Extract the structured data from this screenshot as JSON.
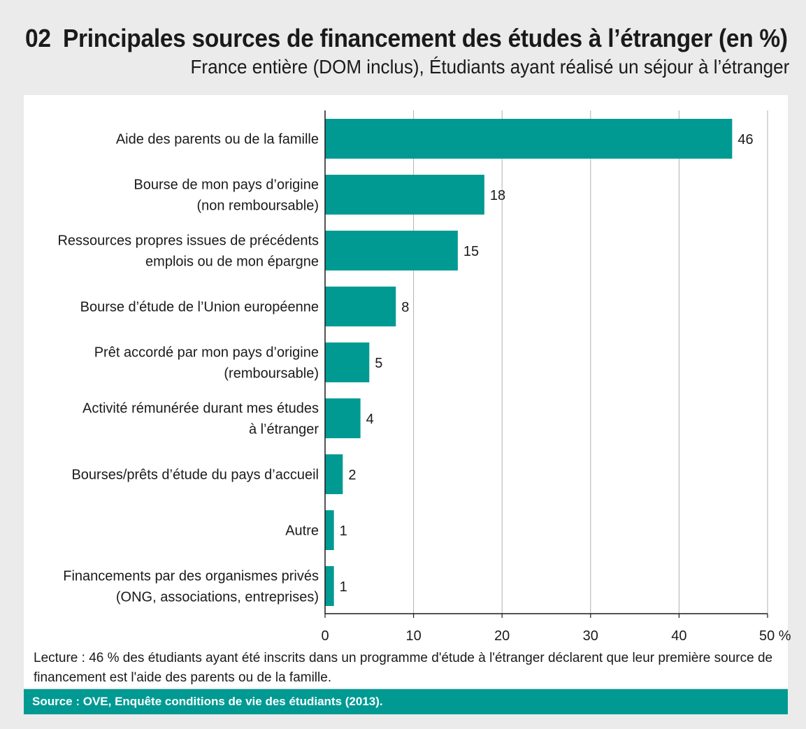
{
  "header": {
    "number": "02",
    "title": "Principales sources de financement des études à l’étranger (en %)",
    "subtitle": "France entière (DOM inclus), Étudiants ayant réalisé un séjour à l’étranger"
  },
  "chart_data": {
    "type": "bar",
    "orientation": "horizontal",
    "categories": [
      [
        "Aide des parents ou de la famille"
      ],
      [
        "Bourse de mon pays d’origine",
        "(non remboursable)"
      ],
      [
        "Ressources propres issues de précédents",
        "emplois ou de mon épargne"
      ],
      [
        "Bourse d’étude de l’Union européenne"
      ],
      [
        "Prêt accordé par mon pays d’origine",
        "(remboursable)"
      ],
      [
        "Activité rémunérée durant mes études",
        "à l’étranger"
      ],
      [
        "Bourses/prêts d’étude du pays d’accueil"
      ],
      [
        "Autre"
      ],
      [
        "Financements par des organismes privés",
        "(ONG, associations, entreprises)"
      ]
    ],
    "values": [
      46,
      18,
      15,
      8,
      5,
      4,
      2,
      1,
      1
    ],
    "value_labels": [
      "46",
      "18",
      "15",
      "8",
      "5",
      "4",
      "2",
      "1",
      "1"
    ],
    "xlim": [
      0,
      50
    ],
    "ticks": [
      0,
      10,
      20,
      30,
      40,
      50
    ],
    "tick_labels": [
      "0",
      "10",
      "20",
      "30",
      "40",
      "50 %"
    ],
    "grid": true,
    "bar_color": "#009a93",
    "grid_color": "#b0b0b0"
  },
  "footer": {
    "lecture": "Lecture : 46 % des étudiants ayant été inscrits dans un programme d'étude à l'étranger déclarent que leur première source de financement est l'aide des parents ou de la famille.",
    "source": "Source : OVE, Enquête conditions de vie des étudiants (2013)."
  }
}
